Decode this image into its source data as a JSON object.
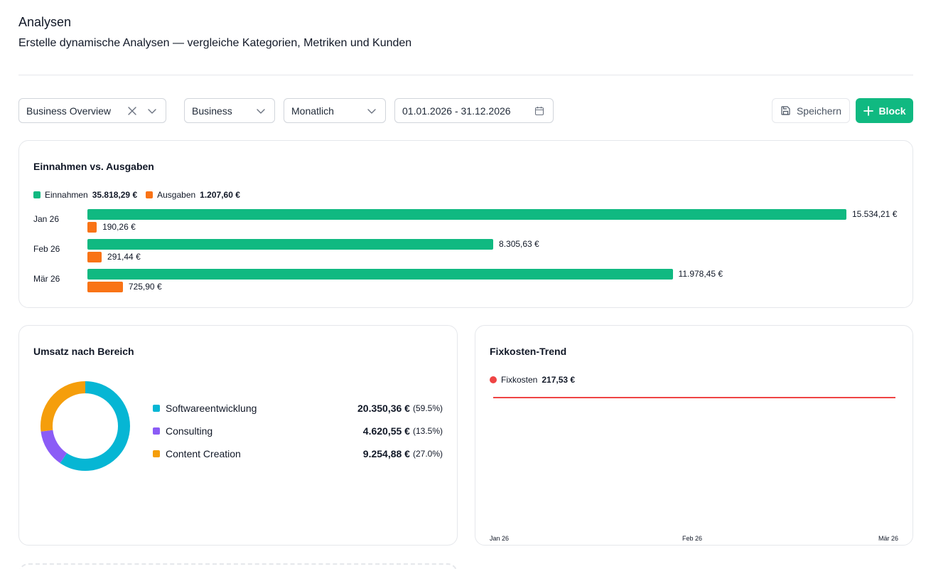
{
  "page": {
    "title": "Analysen",
    "subtitle": "Erstelle dynamische Analysen — vergleiche Kategorien, Metriken und Kunden"
  },
  "toolbar": {
    "view_select": "Business Overview",
    "scope_select": "Business",
    "interval_select": "Monatlich",
    "date_range": "01.01.2026 - 31.12.2026",
    "save_label": "Speichern",
    "add_block_label": "Block"
  },
  "income_expense": {
    "title": "Einnahmen vs. Ausgaben",
    "legend": [
      {
        "label": "Einnahmen",
        "value": "35.818,29 €",
        "color": "#10b981"
      },
      {
        "label": "Ausgaben",
        "value": "1.207,60 €",
        "color": "#f97316"
      }
    ],
    "rows": [
      {
        "month": "Jan 26",
        "income_label": "15.534,21 €",
        "expense_label": "190,26 €"
      },
      {
        "month": "Feb 26",
        "income_label": "8.305,63 €",
        "expense_label": "291,44 €"
      },
      {
        "month": "Mär 26",
        "income_label": "11.978,45 €",
        "expense_label": "725,90 €"
      }
    ]
  },
  "revenue": {
    "title": "Umsatz nach Bereich",
    "items": [
      {
        "name": "Softwareentwicklung",
        "amount": "20.350,36 €",
        "pct": "(59.5%)",
        "color": "#06b6d4"
      },
      {
        "name": "Consulting",
        "amount": "4.620,55 €",
        "pct": "(13.5%)",
        "color": "#8b5cf6"
      },
      {
        "name": "Content Creation",
        "amount": "9.254,88 €",
        "pct": "(27.0%)",
        "color": "#f59e0b"
      }
    ]
  },
  "fixed_costs": {
    "title": "Fixkosten-Trend",
    "legend_label": "Fixkosten",
    "legend_value": "217,53 €",
    "color": "#ef4444",
    "x_labels": [
      "Jan 26",
      "Feb 26",
      "Mär 26"
    ]
  },
  "chart_data": [
    {
      "type": "bar",
      "title": "Einnahmen vs. Ausgaben",
      "categories": [
        "Jan 26",
        "Feb 26",
        "Mär 26"
      ],
      "series": [
        {
          "name": "Einnahmen",
          "values": [
            15534.21,
            8305.63,
            11978.45
          ]
        },
        {
          "name": "Ausgaben",
          "values": [
            190.26,
            291.44,
            725.9
          ]
        }
      ]
    },
    {
      "type": "pie",
      "title": "Umsatz nach Bereich",
      "categories": [
        "Softwareentwicklung",
        "Consulting",
        "Content Creation"
      ],
      "values": [
        20350.36,
        4620.55,
        9254.88
      ]
    },
    {
      "type": "line",
      "title": "Fixkosten-Trend",
      "x": [
        "Jan 26",
        "Feb 26",
        "Mär 26"
      ],
      "series": [
        {
          "name": "Fixkosten",
          "values": [
            72.51,
            72.51,
            72.51
          ]
        }
      ]
    }
  ]
}
